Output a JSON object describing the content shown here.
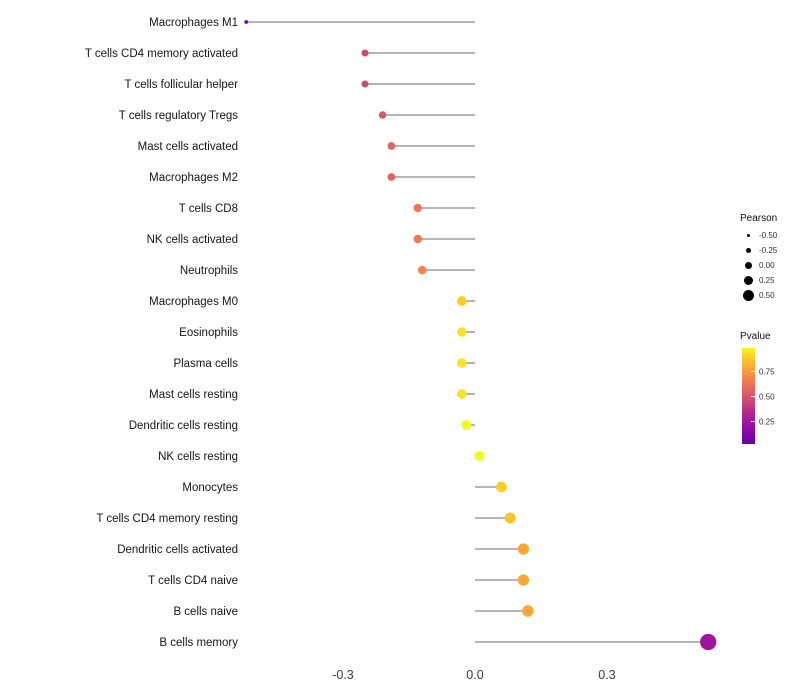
{
  "chart_data": {
    "type": "scatter",
    "subtype": "lollipop",
    "title": "",
    "xlabel": "",
    "ylabel": "",
    "xlim": [
      -0.62,
      0.62
    ],
    "grid": false,
    "x_ticks": [
      -0.3,
      0.0,
      0.3
    ],
    "x_tick_labels": [
      "-0.3",
      "0.0",
      "0.3"
    ],
    "categories": [
      "Macrophages M1",
      "T cells CD4 memory activated",
      "T cells follicular helper",
      "T cells regulatory  Tregs",
      "Mast cells activated",
      "Macrophages M2",
      "T cells CD8",
      "NK cells activated",
      "Neutrophils",
      "Macrophages M0",
      "Eosinophils",
      "Plasma cells",
      "Mast cells resting",
      "Dendritic cells resting",
      "NK cells resting",
      "Monocytes",
      "T cells CD4 memory resting",
      "Dendritic cells activated",
      "T cells CD4 naive",
      "B cells naive",
      "B cells memory"
    ],
    "series": [
      {
        "name": "Pearson",
        "values": [
          -0.52,
          -0.25,
          -0.25,
          -0.21,
          -0.19,
          -0.19,
          -0.13,
          -0.13,
          -0.12,
          -0.03,
          -0.03,
          -0.03,
          -0.03,
          -0.02,
          0.01,
          0.06,
          0.08,
          0.11,
          0.11,
          0.12,
          0.53
        ]
      }
    ],
    "point_colors": [
      "#6A00A8",
      "#CC4778",
      "#CC4778",
      "#D8576B",
      "#E16462",
      "#E16462",
      "#ED7953",
      "#ED7953",
      "#F2844B",
      "#FCCE25",
      "#F7E225",
      "#F7E225",
      "#F7E225",
      "#F0F921",
      "#F0F921",
      "#FCCE25",
      "#FDC527",
      "#FCA636",
      "#FCA636",
      "#FCA636",
      "#9C179E"
    ],
    "stem_color": "#3a3a3a",
    "legend_position": "right"
  },
  "legend": {
    "pearson": {
      "title": "Pearson",
      "entries": [
        {
          "label": "-0.50"
        },
        {
          "label": "-0.25"
        },
        {
          "label": "0.00"
        },
        {
          "label": "0.25"
        },
        {
          "label": "0.50"
        }
      ]
    },
    "pvalue": {
      "title": "Pvalue",
      "ticks": [
        "0.75",
        "0.50",
        "0.25"
      ],
      "gradient_top_color": "#F0F921",
      "gradient_bottom_color": "#6A00A8"
    }
  }
}
